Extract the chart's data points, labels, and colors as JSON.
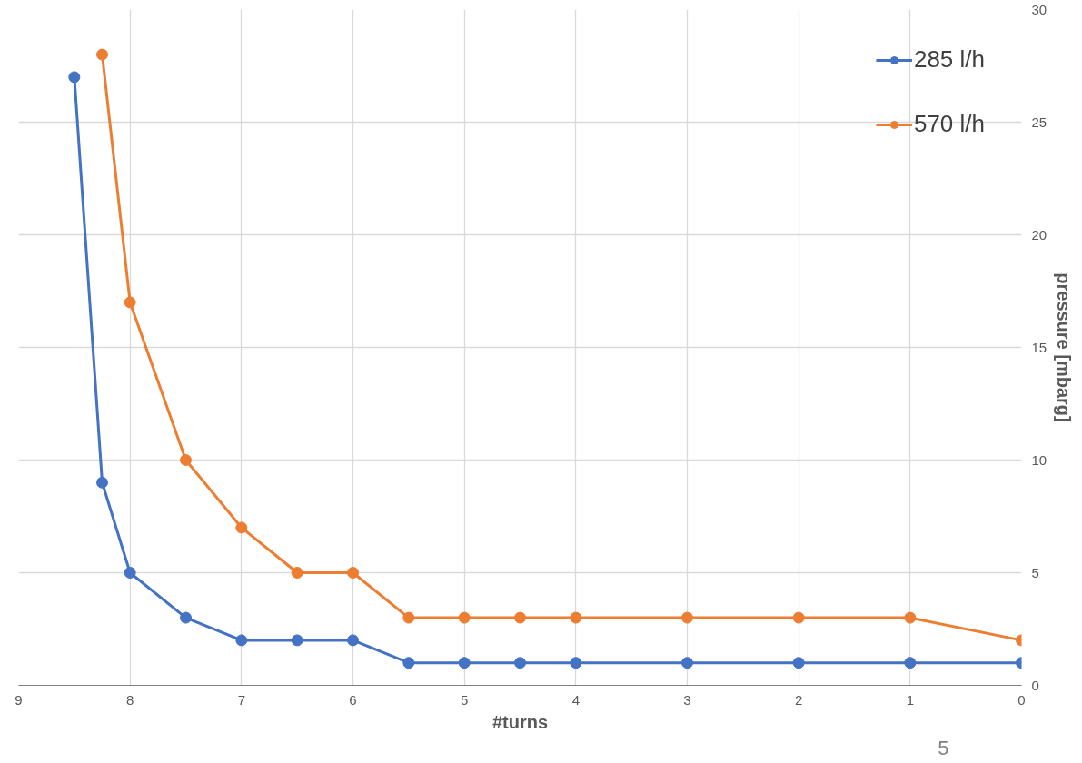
{
  "chart_data": {
    "type": "line",
    "xlabel": "#turns",
    "ylabel": "pressure [mbarg]",
    "xlim": [
      9,
      0
    ],
    "ylim": [
      0,
      30
    ],
    "xticks": [
      9,
      8,
      7,
      6,
      5,
      4,
      3,
      2,
      1,
      0
    ],
    "yticks": [
      0,
      5,
      10,
      15,
      20,
      25,
      30
    ],
    "grid": true,
    "legend": "top right",
    "marker": "circle",
    "line_style": "solid",
    "series": [
      {
        "name": "285 l/h",
        "color": "#4472c4",
        "x": [
          8.5,
          8.25,
          8,
          7.5,
          7,
          6.5,
          6,
          5.5,
          5,
          4.5,
          4,
          3,
          2,
          1,
          0
        ],
        "values": [
          27,
          9,
          5,
          3,
          2,
          2,
          2,
          1,
          1,
          1,
          1,
          1,
          1,
          1,
          1
        ]
      },
      {
        "name": "570 l/h",
        "color": "#ed7d31",
        "x": [
          8.25,
          8,
          7.5,
          7,
          6.5,
          6,
          5.5,
          5,
          4.5,
          4,
          3,
          2,
          1,
          0
        ],
        "values": [
          28,
          17,
          10,
          7,
          5,
          5,
          3,
          3,
          3,
          3,
          3,
          3,
          3,
          2
        ]
      }
    ],
    "annotations": [
      "5"
    ]
  }
}
